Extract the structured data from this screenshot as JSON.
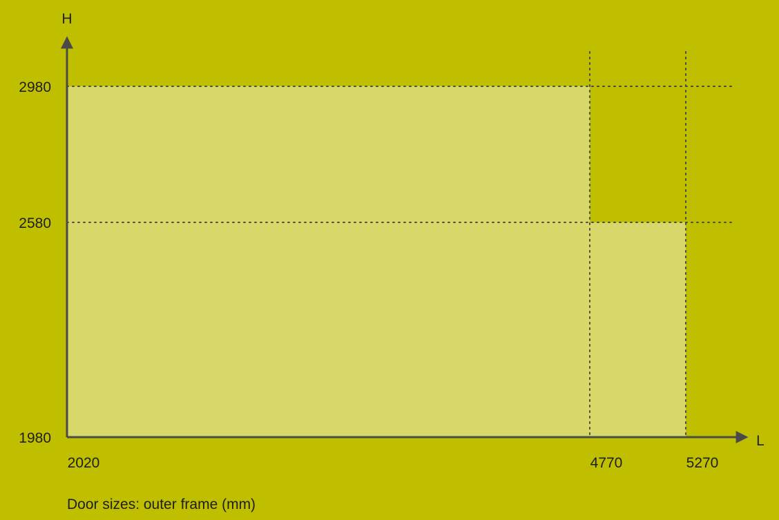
{
  "colors": {
    "background": "#bfbf00",
    "region_fill": "#d8d86a",
    "axis": "#4a4a4a",
    "guide": "#4a4a4a",
    "text": "#1e1e1e"
  },
  "chart_data": {
    "type": "area",
    "description_caption": "Door sizes: outer frame (mm)",
    "xlabel": "L",
    "ylabel": "H",
    "x_ticks": [
      2020,
      4770,
      5270
    ],
    "y_ticks": [
      1980,
      2580,
      2980
    ],
    "xlim": [
      2020,
      5270
    ],
    "ylim": [
      1980,
      2980
    ],
    "region": [
      {
        "x": 2020,
        "y": 2980
      },
      {
        "x": 4770,
        "y": 2980
      },
      {
        "x": 4770,
        "y": 2580
      },
      {
        "x": 5270,
        "y": 2580
      },
      {
        "x": 5270,
        "y": 1980
      },
      {
        "x": 2020,
        "y": 1980
      }
    ],
    "guides": {
      "horizontal": [
        2580,
        2980
      ],
      "vertical": [
        4770,
        5270
      ]
    },
    "grid": false,
    "legend": "none"
  }
}
